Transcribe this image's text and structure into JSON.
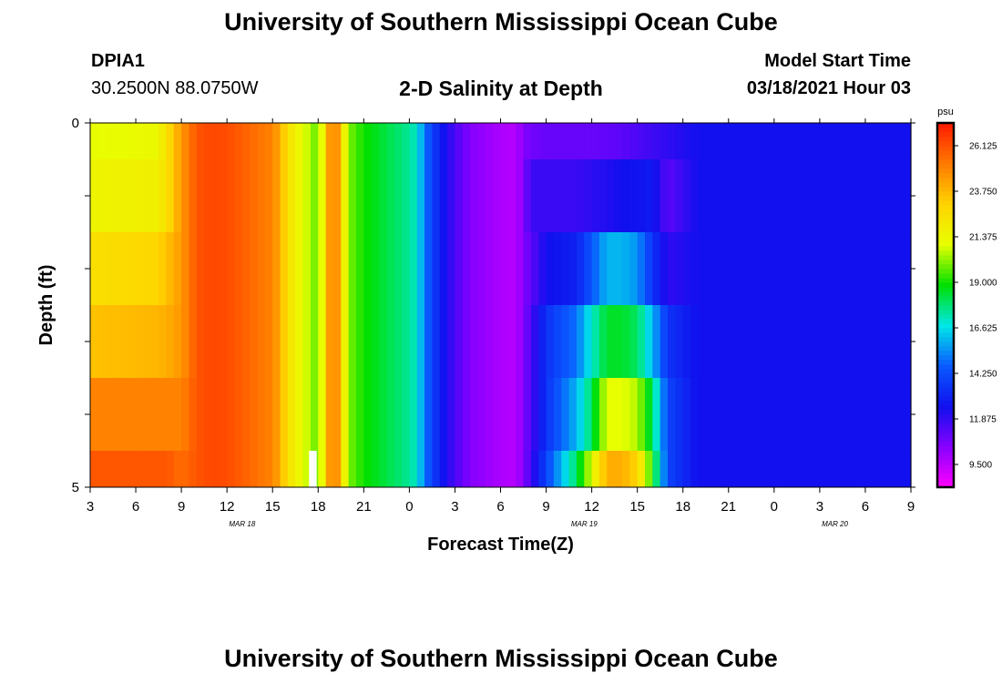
{
  "header": {
    "title": "University of Southern Mississippi Ocean Cube",
    "station_id": "DPIA1",
    "station_coords": "30.2500N 88.0750W",
    "subtitle": "2-D Salinity at Depth",
    "start_label": "Model Start Time",
    "start_value": "03/18/2021 Hour 03"
  },
  "footer": {
    "title": "University of Southern Mississippi Ocean Cube"
  },
  "chart_data": {
    "type": "heatmap",
    "title": "2-D Salinity at Depth",
    "xlabel": "Forecast Time(Z)",
    "ylabel": "Depth (ft)",
    "ylim": [
      0,
      5
    ],
    "y_ticks": [
      "0",
      "5"
    ],
    "x_range_hours": [
      0,
      54
    ],
    "x_tick_labels": [
      "3",
      "6",
      "9",
      "12",
      "15",
      "18",
      "21",
      "0",
      "3",
      "6",
      "9",
      "12",
      "15",
      "18",
      "21",
      "0",
      "3",
      "6",
      "9"
    ],
    "date_labels": [
      {
        "text": "MAR 18",
        "at_hour": 10
      },
      {
        "text": "MAR 19",
        "at_hour": 32.5
      },
      {
        "text": "MAR 20",
        "at_hour": 49
      }
    ],
    "colorbar": {
      "label": "psu",
      "min": 8.3125,
      "max": 27.3125,
      "tick_values": [
        26.125,
        23.75,
        21.375,
        19.0,
        16.625,
        14.25,
        11.875,
        9.5
      ],
      "tick_labels": [
        "26.125",
        "23.750",
        "21.375",
        "19.000",
        "16.625",
        "14.250",
        "11.875",
        "9.500"
      ],
      "colors": [
        "#ff00ff",
        "#8800ff",
        "#1010ee",
        "#0a5aff",
        "#00e8e8",
        "#00e000",
        "#e8ff00",
        "#ffd400",
        "#ff7a00",
        "#ff1a00"
      ]
    },
    "depth_layers": [
      {
        "depth_range": [
          0,
          0.5
        ],
        "x": [
          0,
          4.5,
          5,
          6,
          7,
          8,
          9,
          12,
          12.5,
          13,
          14,
          14.5,
          15,
          16,
          17,
          18,
          20,
          21,
          21.5,
          22,
          23,
          24,
          25,
          27,
          28,
          28.5,
          29,
          30,
          31,
          32,
          33,
          35,
          40,
          54
        ],
        "y": [
          21,
          21.3,
          22.5,
          24.5,
          26,
          26.3,
          26.2,
          25,
          24,
          22.5,
          21,
          20.5,
          19.5,
          26.1,
          20,
          19,
          18,
          17.5,
          17,
          15,
          13,
          11.5,
          10.5,
          9.8,
          9.6,
          10.5,
          10.8,
          11,
          11,
          11,
          11,
          11.2,
          12.5,
          12.5
        ]
      },
      {
        "depth_range": [
          0.5,
          1.5
        ],
        "x": [
          0,
          4.5,
          5,
          6,
          7,
          8,
          9,
          12,
          12.5,
          13,
          14,
          14.5,
          15,
          16,
          17,
          18,
          20,
          21,
          21.5,
          22,
          23,
          24,
          25,
          27,
          28,
          28.5,
          29,
          32,
          35,
          37,
          38,
          40,
          54
        ],
        "y": [
          21.5,
          21.8,
          22.5,
          24.5,
          26,
          26.3,
          26.2,
          25,
          24,
          22.5,
          21,
          20.5,
          19.5,
          26.1,
          20,
          19,
          18,
          17.5,
          17,
          15,
          13,
          11.5,
          10.5,
          9.8,
          9.6,
          10.5,
          11.8,
          11.8,
          12.5,
          12.8,
          11.2,
          12.5,
          12.5
        ]
      },
      {
        "depth_range": [
          1.5,
          2.5
        ],
        "x": [
          0,
          4.5,
          5,
          6,
          7,
          8,
          9,
          12,
          12.5,
          13,
          14,
          14.5,
          15,
          16,
          17,
          18,
          20,
          21,
          21.5,
          22,
          23,
          24,
          25,
          27,
          28,
          28.5,
          30,
          32,
          33,
          34,
          35,
          36,
          37,
          38,
          40,
          54
        ],
        "y": [
          22.5,
          23,
          23.5,
          24.5,
          26,
          26.3,
          26.2,
          25,
          24,
          22.5,
          21,
          20.5,
          19.5,
          26.1,
          20,
          19,
          18,
          17.5,
          17,
          15,
          13,
          11.5,
          10.5,
          9.8,
          9.6,
          10.5,
          12.5,
          13,
          14.5,
          16,
          16,
          15.5,
          13.5,
          12,
          12.5,
          12.5
        ]
      },
      {
        "depth_range": [
          2.5,
          3.5
        ],
        "x": [
          0,
          4.5,
          5,
          6,
          7,
          8,
          9,
          12,
          12.5,
          13,
          14,
          14.5,
          15,
          16,
          17,
          18,
          20,
          21,
          21.5,
          22,
          23,
          24,
          25,
          27,
          28,
          28.5,
          30,
          32,
          33,
          34,
          35,
          36,
          37,
          38,
          40,
          54
        ],
        "y": [
          23.5,
          23.8,
          24,
          24.5,
          26,
          26.3,
          26.2,
          25,
          24,
          22.5,
          21,
          20.5,
          19.5,
          26.1,
          20,
          19,
          18,
          17.5,
          17,
          15,
          13,
          11.5,
          10.5,
          9.8,
          9.6,
          10.5,
          13.5,
          15,
          17,
          18.5,
          18.5,
          18,
          16,
          13.5,
          12.5,
          12.5
        ]
      },
      {
        "depth_range": [
          3.5,
          4.5
        ],
        "x": [
          0,
          4.5,
          5,
          6,
          7,
          8,
          9,
          12,
          12.5,
          13,
          14,
          14.5,
          15,
          16,
          17,
          18,
          20,
          21,
          21.5,
          22,
          23,
          24,
          25,
          27,
          28,
          28.5,
          30,
          32,
          33,
          34,
          35,
          36,
          37,
          38,
          40,
          54
        ],
        "y": [
          25,
          25,
          25,
          25,
          26,
          26.3,
          26.2,
          25,
          24,
          22.5,
          21,
          20.5,
          19.5,
          26.1,
          20,
          19,
          18,
          17.5,
          17,
          15,
          13,
          11.5,
          10.5,
          9.8,
          9.6,
          10.5,
          13.5,
          16,
          18,
          21,
          21,
          20.5,
          18,
          14,
          12.5,
          12.5
        ]
      },
      {
        "depth_range": [
          4.5,
          5
        ],
        "x": [
          0,
          4.5,
          5,
          6,
          7,
          8,
          9,
          12,
          12.5,
          13,
          14,
          14.5,
          15,
          16,
          17,
          18,
          20,
          21,
          21.5,
          22,
          23,
          24,
          25,
          27,
          28,
          28.5,
          30,
          31,
          32,
          33,
          34,
          35,
          36,
          37,
          38,
          40,
          54
        ],
        "y": [
          26,
          26,
          26,
          25.5,
          26,
          26.3,
          26.2,
          25,
          24,
          22.5,
          21,
          20.5,
          19.5,
          26.1,
          20,
          19,
          18,
          17.5,
          17,
          15,
          13,
          11.5,
          10.5,
          9.8,
          9.6,
          10.5,
          14,
          16,
          18,
          21,
          24,
          24,
          23,
          19,
          14,
          12.5,
          12.5
        ]
      }
    ],
    "missing_data": [
      {
        "depth_range": [
          4.5,
          5
        ],
        "x_range": [
          14.4,
          14.9
        ],
        "color": "#ffffff"
      }
    ]
  }
}
